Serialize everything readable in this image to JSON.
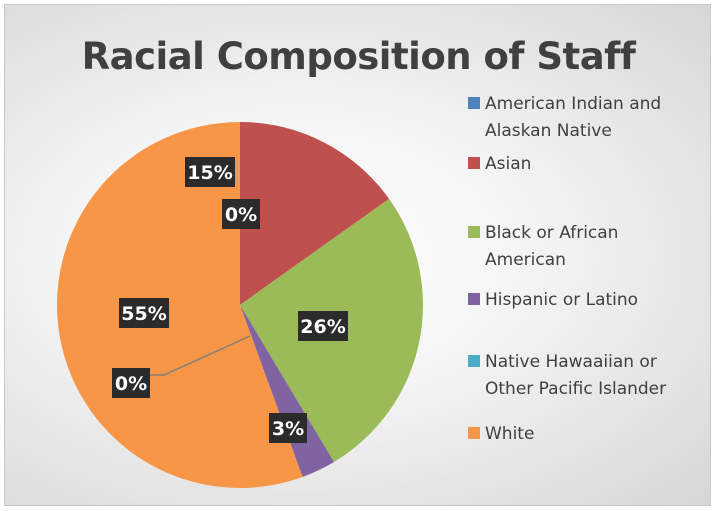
{
  "chart_data": {
    "type": "pie",
    "title": "Racial Composition of Staff",
    "categories": [
      "American Indian and Alaskan Native",
      "Asian",
      "Black or African American",
      "Hispanic or Latino",
      "Native Hawaaiian or Other Pacific Islander",
      "White"
    ],
    "values": [
      0,
      15,
      26,
      3,
      0,
      55
    ],
    "labels": [
      "0%",
      "15%",
      "26%",
      "3%",
      "0%",
      "55%"
    ],
    "colors": [
      "#4f81bd",
      "#c0504d",
      "#9bbb59",
      "#8064a2",
      "#4bacc6",
      "#f79646"
    ],
    "legend_position": "right"
  }
}
